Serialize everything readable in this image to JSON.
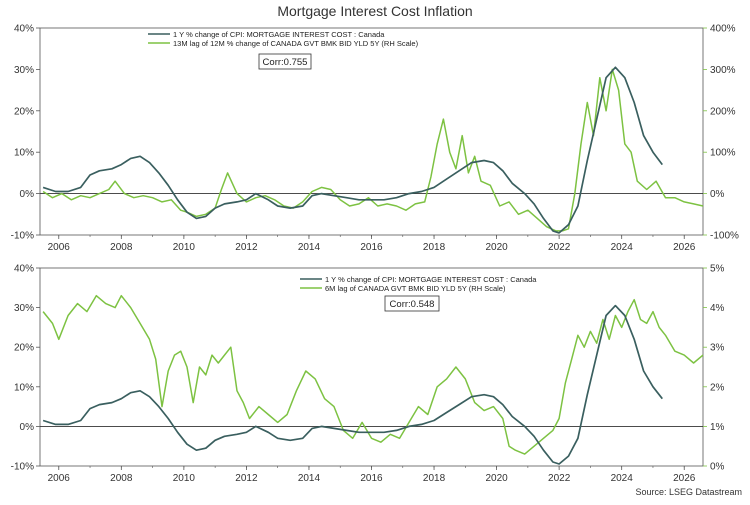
{
  "title": "Mortgage Interest Cost Inflation",
  "source": "Source: LSEG Datastream",
  "colors": {
    "cpi_series": "#3a5f5f",
    "bond_series": "#7dc242",
    "axis": "#555555",
    "right_axis": "#7dc242"
  },
  "chart_data": [
    {
      "type": "line",
      "title": "",
      "annotation": "Corr:0.755",
      "grid": false,
      "legend": "top-left",
      "x_ticks": [
        "2006",
        "2008",
        "2010",
        "2012",
        "2014",
        "2016",
        "2018",
        "2020",
        "2022",
        "2024",
        "2026"
      ],
      "xlim": [
        2005.4,
        2026.6
      ],
      "ylim": [
        -10,
        40
      ],
      "y_ticks": [
        "40%",
        "30%",
        "20%",
        "10%",
        "0%",
        "-10%"
      ],
      "y2lim": [
        -100,
        400
      ],
      "y2_ticks": [
        "400%",
        "300%",
        "200%",
        "100%",
        "0%",
        "-100%"
      ],
      "series": [
        {
          "name": "1 Y % change of CPI: MORTGAGE INTEREST COST : Canada",
          "axis": "left",
          "x": [
            2005.5,
            2005.9,
            2006.3,
            2006.7,
            2007.0,
            2007.3,
            2007.7,
            2008.0,
            2008.3,
            2008.6,
            2008.9,
            2009.2,
            2009.5,
            2009.8,
            2010.1,
            2010.4,
            2010.7,
            2011.0,
            2011.3,
            2011.7,
            2012.0,
            2012.3,
            2012.7,
            2013.0,
            2013.4,
            2013.8,
            2014.1,
            2014.4,
            2014.8,
            2015.2,
            2015.6,
            2016.0,
            2016.4,
            2016.8,
            2017.2,
            2017.6,
            2018.0,
            2018.4,
            2018.8,
            2019.2,
            2019.6,
            2019.9,
            2020.2,
            2020.5,
            2020.9,
            2021.2,
            2021.5,
            2021.8,
            2022.0,
            2022.3,
            2022.6,
            2022.9,
            2023.2,
            2023.5,
            2023.8,
            2024.1,
            2024.4,
            2024.7,
            2025.0,
            2025.3
          ],
          "y": [
            1.5,
            0.5,
            0.5,
            1.5,
            4.5,
            5.5,
            6.0,
            7.0,
            8.5,
            9.0,
            7.5,
            5.0,
            2.0,
            -1.5,
            -4.5,
            -6.0,
            -5.5,
            -3.5,
            -2.5,
            -2.0,
            -1.5,
            0.0,
            -1.5,
            -3.0,
            -3.5,
            -3.0,
            -0.5,
            0.0,
            -0.5,
            -1.0,
            -1.5,
            -1.5,
            -1.5,
            -1.0,
            0.0,
            0.5,
            1.5,
            3.5,
            5.5,
            7.5,
            8.0,
            7.5,
            5.5,
            2.5,
            0.0,
            -2.5,
            -6.0,
            -9.0,
            -9.5,
            -7.5,
            -3.0,
            8.0,
            18.0,
            28.0,
            30.5,
            28.0,
            22.0,
            14.0,
            10.0,
            7.0
          ]
        },
        {
          "name": "13M lag of 12M % change of CANADA GVT BMK BID YLD 5Y (RH Scale)",
          "axis": "right",
          "x": [
            2005.5,
            2005.8,
            2006.1,
            2006.4,
            2006.7,
            2007.0,
            2007.3,
            2007.6,
            2007.8,
            2008.1,
            2008.4,
            2008.7,
            2009.0,
            2009.3,
            2009.6,
            2009.9,
            2010.1,
            2010.4,
            2010.7,
            2011.0,
            2011.2,
            2011.4,
            2011.7,
            2012.0,
            2012.3,
            2012.6,
            2012.9,
            2013.2,
            2013.5,
            2013.8,
            2014.1,
            2014.4,
            2014.7,
            2015.0,
            2015.3,
            2015.6,
            2015.9,
            2016.2,
            2016.5,
            2016.8,
            2017.1,
            2017.4,
            2017.7,
            2017.9,
            2018.1,
            2018.3,
            2018.5,
            2018.7,
            2018.9,
            2019.1,
            2019.3,
            2019.5,
            2019.8,
            2020.1,
            2020.4,
            2020.7,
            2021.0,
            2021.3,
            2021.6,
            2021.9,
            2022.1,
            2022.3,
            2022.5,
            2022.7,
            2022.9,
            2023.1,
            2023.3,
            2023.5,
            2023.7,
            2023.9,
            2024.1,
            2024.3,
            2024.5,
            2024.8,
            2025.1,
            2025.4,
            2025.7,
            2026.0,
            2026.3,
            2026.6
          ],
          "y": [
            5,
            -10,
            0,
            -15,
            -5,
            -10,
            0,
            10,
            30,
            0,
            -10,
            -5,
            -10,
            -20,
            -15,
            -40,
            -45,
            -55,
            -50,
            -35,
            10,
            50,
            0,
            -20,
            -10,
            -5,
            -15,
            -30,
            -35,
            -20,
            5,
            15,
            10,
            -15,
            -30,
            -25,
            -10,
            -30,
            -25,
            -30,
            -40,
            -25,
            -20,
            40,
            120,
            180,
            100,
            60,
            140,
            50,
            90,
            30,
            20,
            -30,
            -20,
            -50,
            -40,
            -60,
            -80,
            -90,
            -90,
            -85,
            0,
            120,
            220,
            140,
            280,
            200,
            300,
            250,
            120,
            100,
            30,
            10,
            30,
            -10,
            -10,
            -20,
            -25,
            -30
          ]
        }
      ]
    },
    {
      "type": "line",
      "title": "",
      "annotation": "Corr:0.548",
      "grid": false,
      "legend": "top-center",
      "x_ticks": [
        "2006",
        "2008",
        "2010",
        "2012",
        "2014",
        "2016",
        "2018",
        "2020",
        "2022",
        "2024",
        "2026"
      ],
      "xlim": [
        2005.4,
        2026.6
      ],
      "ylim": [
        -10,
        40
      ],
      "y_ticks": [
        "40%",
        "30%",
        "20%",
        "10%",
        "0%",
        "-10%"
      ],
      "y2lim": [
        0,
        5
      ],
      "y2_ticks": [
        "5%",
        "4%",
        "3%",
        "2%",
        "1%",
        "0%"
      ],
      "series": [
        {
          "name": "1 Y % change of CPI: MORTGAGE INTEREST COST : Canada",
          "axis": "left",
          "x": [
            2005.5,
            2005.9,
            2006.3,
            2006.7,
            2007.0,
            2007.3,
            2007.7,
            2008.0,
            2008.3,
            2008.6,
            2008.9,
            2009.2,
            2009.5,
            2009.8,
            2010.1,
            2010.4,
            2010.7,
            2011.0,
            2011.3,
            2011.7,
            2012.0,
            2012.3,
            2012.7,
            2013.0,
            2013.4,
            2013.8,
            2014.1,
            2014.4,
            2014.8,
            2015.2,
            2015.6,
            2016.0,
            2016.4,
            2016.8,
            2017.2,
            2017.6,
            2018.0,
            2018.4,
            2018.8,
            2019.2,
            2019.6,
            2019.9,
            2020.2,
            2020.5,
            2020.9,
            2021.2,
            2021.5,
            2021.8,
            2022.0,
            2022.3,
            2022.6,
            2022.9,
            2023.2,
            2023.5,
            2023.8,
            2024.1,
            2024.4,
            2024.7,
            2025.0,
            2025.3
          ],
          "y": [
            1.5,
            0.5,
            0.5,
            1.5,
            4.5,
            5.5,
            6.0,
            7.0,
            8.5,
            9.0,
            7.5,
            5.0,
            2.0,
            -1.5,
            -4.5,
            -6.0,
            -5.5,
            -3.5,
            -2.5,
            -2.0,
            -1.5,
            0.0,
            -1.5,
            -3.0,
            -3.5,
            -3.0,
            -0.5,
            0.0,
            -0.5,
            -1.0,
            -1.5,
            -1.5,
            -1.5,
            -1.0,
            0.0,
            0.5,
            1.5,
            3.5,
            5.5,
            7.5,
            8.0,
            7.5,
            5.5,
            2.5,
            0.0,
            -2.5,
            -6.0,
            -9.0,
            -9.5,
            -7.5,
            -3.0,
            8.0,
            18.0,
            28.0,
            30.5,
            28.0,
            22.0,
            14.0,
            10.0,
            7.0
          ]
        },
        {
          "name": "6M lag of CANADA GVT BMK BID YLD 5Y (RH Scale)",
          "axis": "right",
          "x": [
            2005.5,
            2005.8,
            2006.0,
            2006.3,
            2006.6,
            2006.9,
            2007.2,
            2007.5,
            2007.8,
            2008.0,
            2008.3,
            2008.6,
            2008.9,
            2009.1,
            2009.3,
            2009.5,
            2009.7,
            2009.9,
            2010.1,
            2010.3,
            2010.5,
            2010.7,
            2010.9,
            2011.1,
            2011.3,
            2011.5,
            2011.7,
            2011.9,
            2012.1,
            2012.4,
            2012.7,
            2013.0,
            2013.3,
            2013.6,
            2013.9,
            2014.2,
            2014.5,
            2014.8,
            2015.1,
            2015.4,
            2015.7,
            2016.0,
            2016.3,
            2016.6,
            2016.9,
            2017.2,
            2017.5,
            2017.8,
            2018.1,
            2018.4,
            2018.7,
            2019.0,
            2019.3,
            2019.6,
            2019.9,
            2020.2,
            2020.4,
            2020.6,
            2020.9,
            2021.2,
            2021.5,
            2021.8,
            2022.0,
            2022.2,
            2022.4,
            2022.6,
            2022.8,
            2023.0,
            2023.2,
            2023.4,
            2023.6,
            2023.8,
            2024.0,
            2024.2,
            2024.4,
            2024.6,
            2024.8,
            2025.0,
            2025.2,
            2025.4,
            2025.7,
            2026.0,
            2026.3,
            2026.6
          ],
          "y": [
            3.9,
            3.6,
            3.2,
            3.8,
            4.1,
            3.9,
            4.3,
            4.1,
            4.0,
            4.3,
            4.0,
            3.6,
            3.2,
            2.7,
            1.5,
            2.4,
            2.8,
            2.9,
            2.5,
            1.6,
            2.5,
            2.3,
            2.8,
            2.6,
            2.8,
            3.0,
            1.9,
            1.6,
            1.2,
            1.5,
            1.3,
            1.1,
            1.3,
            1.9,
            2.4,
            2.2,
            1.7,
            1.5,
            0.9,
            0.7,
            1.1,
            0.7,
            0.6,
            0.8,
            0.7,
            1.1,
            1.5,
            1.3,
            2.0,
            2.2,
            2.5,
            2.2,
            1.6,
            1.4,
            1.5,
            1.2,
            0.5,
            0.4,
            0.3,
            0.5,
            0.7,
            0.9,
            1.2,
            2.1,
            2.7,
            3.3,
            3.0,
            3.4,
            3.1,
            3.7,
            3.2,
            3.8,
            3.5,
            3.9,
            4.2,
            3.7,
            3.6,
            3.9,
            3.5,
            3.3,
            2.9,
            2.8,
            2.6,
            2.8
          ]
        }
      ]
    }
  ]
}
